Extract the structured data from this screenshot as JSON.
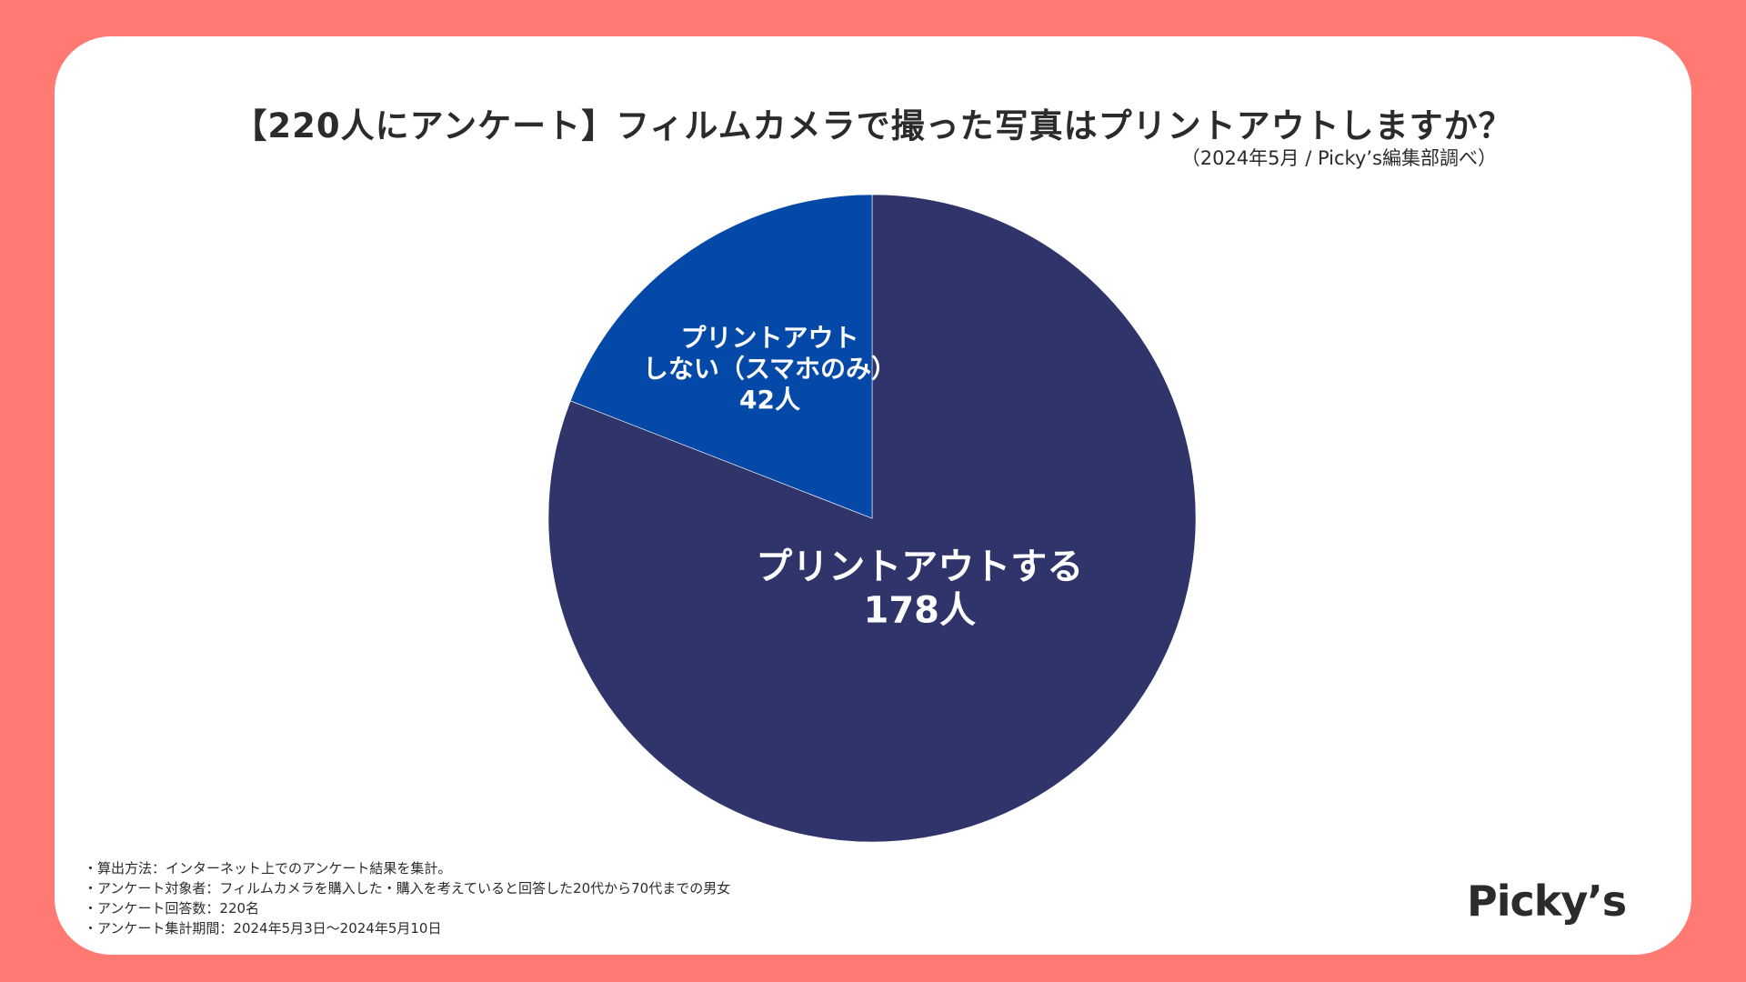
{
  "chart_data": {
    "type": "pie",
    "title": "【220人にアンケート】フィルムカメラで撮った写真はプリントアウトしますか？",
    "subtitle": "（2024年5月 / Picky’s編集部調べ）",
    "slices": [
      {
        "label_lines": [
          "プリントアウトする"
        ],
        "value": 178,
        "value_label": "178人",
        "color": "#2f346b"
      },
      {
        "label_lines": [
          "プリントアウト",
          "しない（スマホのみ）"
        ],
        "value": 42,
        "value_label": "42人",
        "color": "#0449a8"
      }
    ],
    "total": 220
  },
  "notes": [
    "・算出方法：インターネット上でのアンケート結果を集計。",
    "・アンケート対象者：フィルムカメラを購入した・購入を考えていると回答した20代から70代までの男女",
    "・アンケート回答数：220名",
    "・アンケート集計期間：2024年5月3日〜2024年5月10日"
  ],
  "logo": "Picky’s",
  "colors": {
    "frame": "#ff7a72",
    "card": "#ffffff"
  }
}
